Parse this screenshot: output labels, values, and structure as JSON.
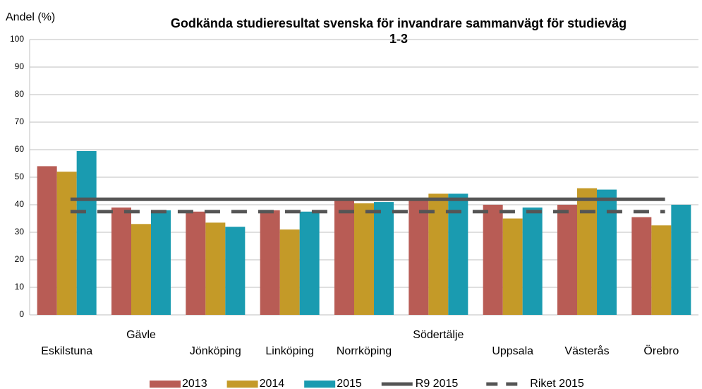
{
  "chart_data": {
    "type": "bar",
    "title": [
      "Godkända studieresultat svenska för invandrare sammanvägt för studieväg",
      "1-3"
    ],
    "y_label": "Andel (%)",
    "categories": [
      "Eskilstuna",
      "Gävle",
      "Jönköping",
      "Linköping",
      "Norrköping",
      "Södertälje",
      "Uppsala",
      "Västerås",
      "Örebro"
    ],
    "series": [
      {
        "name": "2013",
        "color": "#b85c55",
        "values": [
          54,
          39,
          37.5,
          38,
          42,
          42,
          40,
          40,
          35.5
        ]
      },
      {
        "name": "2014",
        "color": "#c49a28",
        "values": [
          52,
          33,
          33.5,
          31,
          40.5,
          44,
          35,
          46,
          32.5
        ]
      },
      {
        "name": "2015",
        "color": "#1a9bb0",
        "values": [
          59.5,
          38,
          32,
          37.5,
          41,
          44,
          39,
          45.5,
          40
        ]
      }
    ],
    "reference_lines": [
      {
        "name": "R9 2015",
        "color": "#555555",
        "value": 42,
        "style": "solid"
      },
      {
        "name": "Riket 2015",
        "color": "#555555",
        "value": 37.5,
        "style": "dashed"
      }
    ],
    "ylim": [
      0,
      100
    ],
    "yticks": [
      0,
      10,
      20,
      30,
      40,
      50,
      60,
      70,
      80,
      90,
      100
    ],
    "grid": true,
    "legend": "bottom"
  }
}
